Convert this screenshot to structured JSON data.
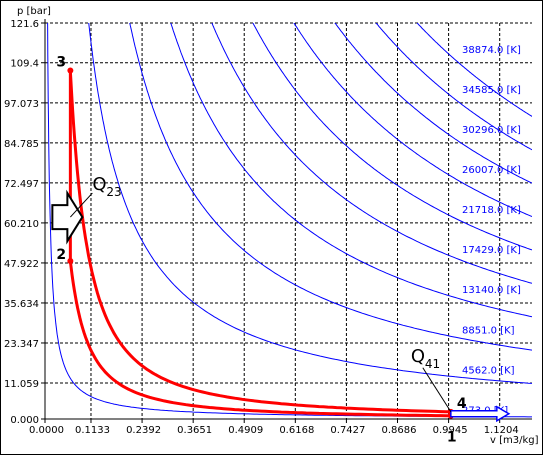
{
  "chart_data": {
    "type": "line",
    "ylabel": "p [bar]",
    "xlabel": "v [m3/kg]",
    "xlim": [
      0.0,
      1.2
    ],
    "ylim": [
      0.0,
      121.6
    ],
    "x_ticks": [
      "0.0000",
      "0.1133",
      "0.2392",
      "0.3651",
      "0.4909",
      "0.6168",
      "0.7427",
      "0.8686",
      "0.9945",
      "1.1204"
    ],
    "x_tick_values": [
      0.0,
      0.1133,
      0.2392,
      0.3651,
      0.4909,
      0.6168,
      0.7427,
      0.8686,
      0.9945,
      1.1204
    ],
    "y_ticks": [
      "0.000",
      "11.059",
      "23.347",
      "35.634",
      "47.922",
      "60.210",
      "72.497",
      "84.785",
      "97.073",
      "109.4",
      "121.6"
    ],
    "y_tick_values": [
      0.0,
      11.059,
      23.347,
      35.634,
      47.922,
      60.21,
      72.497,
      84.785,
      97.073,
      109.4,
      121.6
    ],
    "grid": true,
    "isotherms": [
      {
        "label": "273.0 [K]",
        "C": 0.78
      },
      {
        "label": "4562.0 [K]",
        "C": 13.1
      },
      {
        "label": "8851.0 [K]",
        "C": 25.4
      },
      {
        "label": "13140.0 [K]",
        "C": 37.7
      },
      {
        "label": "17429.0 [K]",
        "C": 50.0
      },
      {
        "label": "21718.0 [K]",
        "C": 62.3
      },
      {
        "label": "26007.0 [K]",
        "C": 74.6
      },
      {
        "label": "30296.0 [K]",
        "C": 86.9
      },
      {
        "label": "34585.0 [K]",
        "C": 99.2
      },
      {
        "label": "38874.0 [K]",
        "C": 111.5
      }
    ],
    "cycle_points": [
      {
        "label": "1",
        "v": 1.0,
        "p": 1.0
      },
      {
        "label": "2",
        "v": 0.0625,
        "p": 48.5
      },
      {
        "label": "3",
        "v": 0.0625,
        "p": 107.0
      },
      {
        "label": "4",
        "v": 1.0,
        "p": 2.2
      }
    ],
    "heat_labels": [
      {
        "main": "Q",
        "sub": "23"
      },
      {
        "main": "Q",
        "sub": "41"
      }
    ],
    "colors": {
      "isotherm": "#0000ff",
      "cycle": "#ff0000",
      "grid": "#000000"
    }
  }
}
